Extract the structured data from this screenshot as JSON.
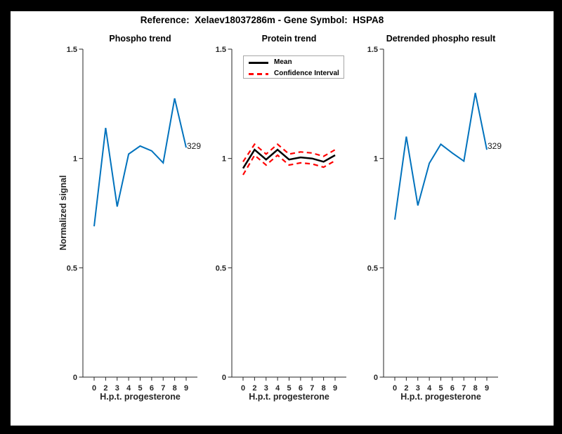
{
  "figure": {
    "title": "Reference:  Xelaev18037286m - Gene Symbol:  HSPA8",
    "frame_color": "#000000",
    "background_color": "#ffffff"
  },
  "colors": {
    "line_blue": "#0072BD",
    "mean_black": "#000000",
    "ci_red": "#ff0000",
    "axis_gray": "#262626"
  },
  "legend": {
    "position": "top-left-of-middle-plot",
    "items": [
      {
        "label": "Mean",
        "color": "#000000",
        "style": "solid"
      },
      {
        "label": "Confidence Interval",
        "color": "#ff0000",
        "style": "dashed"
      }
    ]
  },
  "chart_data": [
    {
      "type": "line",
      "title": "Phospho trend",
      "xlabel": "H.p.t. progesterone",
      "ylabel": "Normalized signal",
      "ylim": [
        0,
        1.5
      ],
      "grid": false,
      "x_labels": [
        "0",
        "2",
        "3",
        "4",
        "5",
        "6",
        "7",
        "8",
        "9"
      ],
      "y_ticks": [
        {
          "value": 0,
          "label": "0"
        },
        {
          "value": 0.5,
          "label": "0.5"
        },
        {
          "value": 1,
          "label": "1"
        },
        {
          "value": 1.5,
          "label": "1.5"
        }
      ],
      "series": [
        {
          "name": "phospho-trend",
          "color": "#0072BD",
          "style": "solid",
          "width": 2,
          "values": [
            0.69,
            1.14,
            0.78,
            1.02,
            1.057,
            1.035,
            0.98,
            1.275,
            1.05
          ]
        }
      ],
      "annotation": "329"
    },
    {
      "type": "line",
      "title": "Protein trend",
      "xlabel": "H.p.t. progesterone",
      "ylabel": "Normalized signal",
      "ylim": [
        0,
        1.5
      ],
      "grid": false,
      "x_labels": [
        "0",
        "2",
        "3",
        "4",
        "5",
        "6",
        "7",
        "8",
        "9"
      ],
      "y_ticks": [
        {
          "value": 0,
          "label": "0"
        },
        {
          "value": 0.5,
          "label": "0.5"
        },
        {
          "value": 1,
          "label": "1"
        },
        {
          "value": 1.5,
          "label": "1.5"
        }
      ],
      "series": [
        {
          "name": "ci-upper",
          "color": "#ff0000",
          "style": "dashed",
          "width": 2.2,
          "values": [
            0.985,
            1.065,
            1.02,
            1.065,
            1.02,
            1.03,
            1.025,
            1.01,
            1.04
          ]
        },
        {
          "name": "ci-lower",
          "color": "#ff0000",
          "style": "dashed",
          "width": 2.2,
          "values": [
            0.925,
            1.015,
            0.97,
            1.015,
            0.97,
            0.98,
            0.975,
            0.96,
            0.99
          ]
        },
        {
          "name": "mean",
          "color": "#000000",
          "style": "solid",
          "width": 2.5,
          "values": [
            0.955,
            1.04,
            0.995,
            1.04,
            0.995,
            1.005,
            1.0,
            0.985,
            1.015
          ]
        }
      ],
      "annotation": null
    },
    {
      "type": "line",
      "title": "Detrended phospho result",
      "xlabel": "H.p.t. progesterone",
      "ylabel": "Normalized signal",
      "ylim": [
        0,
        1.5
      ],
      "grid": false,
      "x_labels": [
        "0",
        "2",
        "3",
        "4",
        "5",
        "6",
        "7",
        "8",
        "9"
      ],
      "y_ticks": [
        {
          "value": 0,
          "label": "0"
        },
        {
          "value": 0.5,
          "label": "0.5"
        },
        {
          "value": 1,
          "label": "1"
        },
        {
          "value": 1.5,
          "label": "1.5"
        }
      ],
      "series": [
        {
          "name": "detrended-phospho",
          "color": "#0072BD",
          "style": "solid",
          "width": 2,
          "values": [
            0.72,
            1.1,
            0.785,
            0.978,
            1.065,
            1.025,
            0.988,
            1.3,
            1.04
          ]
        }
      ],
      "annotation": "329"
    }
  ]
}
